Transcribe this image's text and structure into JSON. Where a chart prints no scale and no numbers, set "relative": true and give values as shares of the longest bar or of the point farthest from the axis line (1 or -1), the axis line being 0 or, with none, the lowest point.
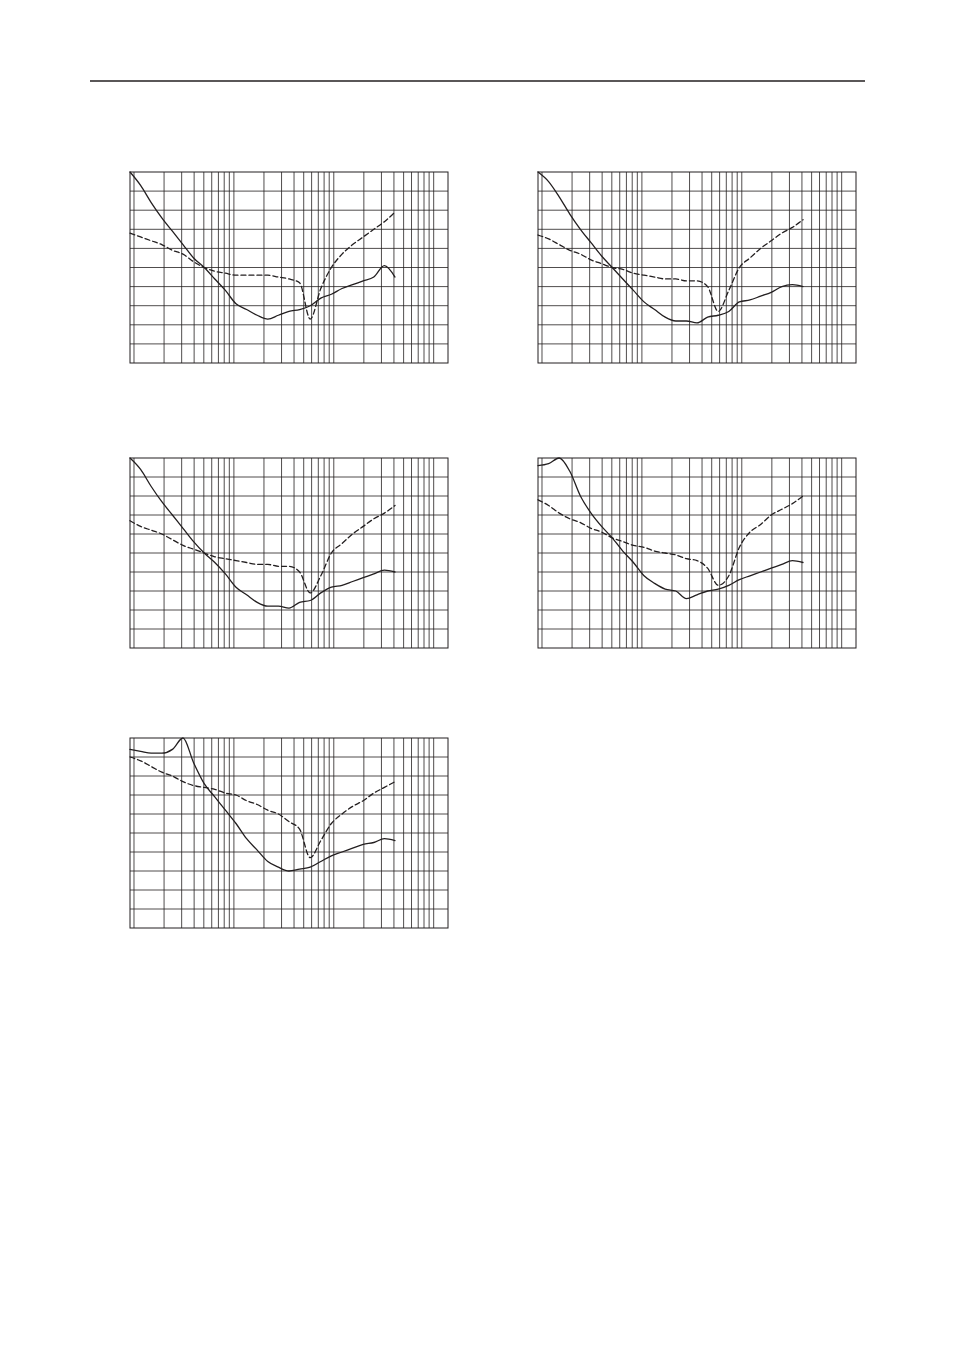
{
  "chart_data": [
    {
      "type": "line",
      "relative": true,
      "grid": true,
      "categories": [
        null,
        null,
        null,
        null,
        null,
        null,
        null,
        null,
        null,
        null,
        null,
        null,
        null,
        null,
        null,
        null,
        null,
        null,
        null,
        null,
        null,
        null,
        null,
        null,
        null,
        null,
        null,
        null,
        null,
        null,
        null
      ],
      "series": [
        {
          "color": "#231f20",
          "line_style": "solid",
          "values": [
            1,
            0.93,
            0.84,
            0.76,
            0.69,
            0.62,
            0.55,
            0.5,
            0.44,
            0.38,
            0.31,
            0.28,
            0.25,
            0.23,
            0.25,
            0.27,
            0.28,
            0.3,
            0.34,
            0.36,
            0.39,
            0.41,
            0.43,
            0.45,
            0.51,
            0.45,
            null,
            null,
            null,
            null,
            null
          ]
        },
        {
          "color": "#231f20",
          "line_style": "dashed",
          "values": [
            0.68,
            0.66,
            0.64,
            0.62,
            0.59,
            0.57,
            0.53,
            0.5,
            0.48,
            0.47,
            0.46,
            0.46,
            0.46,
            0.46,
            0.45,
            0.44,
            0.42,
            0.23,
            0.39,
            0.5,
            0.57,
            0.62,
            0.66,
            0.7,
            0.74,
            0.79,
            null,
            null,
            null,
            null,
            null
          ]
        }
      ]
    },
    {
      "type": "line",
      "relative": true,
      "grid": true,
      "categories": [
        null,
        null,
        null,
        null,
        null,
        null,
        null,
        null,
        null,
        null,
        null,
        null,
        null,
        null,
        null,
        null,
        null,
        null,
        null,
        null,
        null,
        null,
        null,
        null,
        null,
        null,
        null,
        null,
        null,
        null,
        null
      ],
      "series": [
        {
          "color": "#231f20",
          "line_style": "solid",
          "values": [
            1,
            0.95,
            0.87,
            0.78,
            0.7,
            0.63,
            0.56,
            0.5,
            0.44,
            0.38,
            0.32,
            0.28,
            0.24,
            0.22,
            0.22,
            0.21,
            0.24,
            0.25,
            0.27,
            0.32,
            0.33,
            0.35,
            0.37,
            0.4,
            0.41,
            0.4,
            null,
            null,
            null,
            null,
            null
          ]
        },
        {
          "color": "#231f20",
          "line_style": "dashed",
          "values": [
            0.67,
            0.65,
            0.62,
            0.59,
            0.57,
            0.54,
            0.52,
            0.5,
            0.49,
            0.47,
            0.46,
            0.45,
            0.44,
            0.44,
            0.43,
            0.43,
            0.4,
            0.27,
            0.38,
            0.5,
            0.55,
            0.6,
            0.64,
            0.68,
            0.71,
            0.75,
            null,
            null,
            null,
            null,
            null
          ]
        }
      ]
    },
    {
      "type": "line",
      "relative": true,
      "grid": true,
      "categories": [
        null,
        null,
        null,
        null,
        null,
        null,
        null,
        null,
        null,
        null,
        null,
        null,
        null,
        null,
        null,
        null,
        null,
        null,
        null,
        null,
        null,
        null,
        null,
        null,
        null,
        null,
        null,
        null,
        null,
        null,
        null
      ],
      "series": [
        {
          "color": "#231f20",
          "line_style": "solid",
          "values": [
            1,
            0.94,
            0.85,
            0.77,
            0.7,
            0.63,
            0.56,
            0.5,
            0.45,
            0.39,
            0.32,
            0.28,
            0.24,
            0.22,
            0.22,
            0.21,
            0.24,
            0.25,
            0.29,
            0.32,
            0.33,
            0.35,
            0.37,
            0.39,
            0.41,
            0.4,
            null,
            null,
            null,
            null,
            null
          ]
        },
        {
          "color": "#231f20",
          "line_style": "dashed",
          "values": [
            0.67,
            0.64,
            0.62,
            0.6,
            0.57,
            0.54,
            0.52,
            0.5,
            0.48,
            0.47,
            0.46,
            0.45,
            0.44,
            0.44,
            0.43,
            0.43,
            0.4,
            0.29,
            0.38,
            0.5,
            0.55,
            0.6,
            0.64,
            0.68,
            0.71,
            0.75,
            null,
            null,
            null,
            null,
            null
          ]
        }
      ]
    },
    {
      "type": "line",
      "relative": true,
      "grid": true,
      "categories": [
        null,
        null,
        null,
        null,
        null,
        null,
        null,
        null,
        null,
        null,
        null,
        null,
        null,
        null,
        null,
        null,
        null,
        null,
        null,
        null,
        null,
        null,
        null,
        null,
        null,
        null,
        null,
        null,
        null,
        null,
        null
      ],
      "series": [
        {
          "color": "#231f20",
          "line_style": "solid",
          "values": [
            0.96,
            0.97,
            1,
            0.93,
            0.8,
            0.71,
            0.64,
            0.58,
            0.51,
            0.45,
            0.38,
            0.34,
            0.31,
            0.3,
            0.26,
            0.28,
            0.3,
            0.31,
            0.33,
            0.36,
            0.38,
            0.4,
            0.42,
            0.44,
            0.46,
            0.45,
            null,
            null,
            null,
            null,
            null
          ]
        },
        {
          "color": "#231f20",
          "line_style": "dashed",
          "values": [
            0.78,
            0.75,
            0.71,
            0.68,
            0.66,
            0.63,
            0.61,
            0.58,
            0.56,
            0.54,
            0.53,
            0.51,
            0.5,
            0.49,
            0.47,
            0.46,
            0.42,
            0.33,
            0.38,
            0.53,
            0.61,
            0.65,
            0.7,
            0.73,
            0.76,
            0.8,
            null,
            null,
            null,
            null,
            null
          ]
        }
      ]
    },
    {
      "type": "line",
      "relative": true,
      "grid": true,
      "categories": [
        null,
        null,
        null,
        null,
        null,
        null,
        null,
        null,
        null,
        null,
        null,
        null,
        null,
        null,
        null,
        null,
        null,
        null,
        null,
        null,
        null,
        null,
        null,
        null,
        null,
        null,
        null,
        null,
        null,
        null,
        null
      ],
      "series": [
        {
          "color": "#231f20",
          "line_style": "solid",
          "values": [
            0.94,
            0.93,
            0.92,
            0.92,
            0.94,
            1,
            0.87,
            0.76,
            0.69,
            0.62,
            0.55,
            0.47,
            0.41,
            0.35,
            0.32,
            0.3,
            0.31,
            0.32,
            0.35,
            0.38,
            0.4,
            0.42,
            0.44,
            0.45,
            0.47,
            0.46,
            null,
            null,
            null,
            null,
            null
          ]
        },
        {
          "color": "#231f20",
          "line_style": "dashed",
          "values": [
            0.9,
            0.88,
            0.85,
            0.82,
            0.8,
            0.77,
            0.75,
            0.74,
            0.73,
            0.71,
            0.7,
            0.67,
            0.65,
            0.62,
            0.6,
            0.56,
            0.52,
            0.37,
            0.46,
            0.55,
            0.6,
            0.64,
            0.67,
            0.71,
            0.74,
            0.77,
            null,
            null,
            null,
            null,
            null
          ]
        }
      ]
    }
  ]
}
